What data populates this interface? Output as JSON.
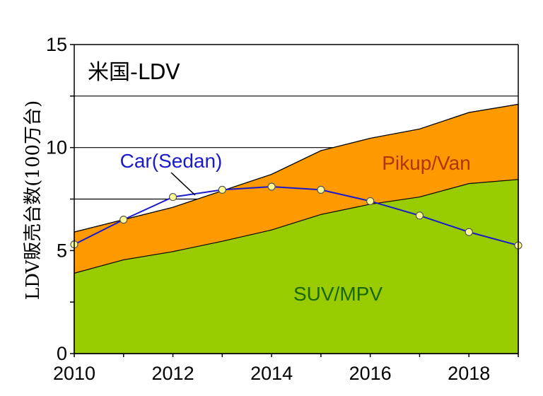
{
  "chart_data": {
    "type": "area",
    "title": "米国-LDV",
    "ylabel": "LDV販売台数(100万台)",
    "xlabel": "",
    "x": [
      2010,
      2011,
      2012,
      2013,
      2014,
      2015,
      2016,
      2017,
      2018,
      2019
    ],
    "xlim": [
      2010,
      2019
    ],
    "ylim": [
      0,
      15
    ],
    "x_ticks": [
      2010,
      2012,
      2014,
      2016,
      2018
    ],
    "y_ticks": [
      0,
      5,
      10,
      15
    ],
    "grid_y": [
      7.5,
      10,
      12.5
    ],
    "stacked": true,
    "series": [
      {
        "name": "SUV/MPV",
        "kind": "stacked-area",
        "color": "#99cc00",
        "values": [
          3.9,
          4.55,
          4.95,
          5.45,
          6.0,
          6.75,
          7.25,
          7.6,
          8.25,
          8.45
        ]
      },
      {
        "name": "Pikup/Van",
        "kind": "stacked-area",
        "color": "#ff9900",
        "cumulative": [
          5.9,
          6.5,
          7.1,
          7.9,
          8.7,
          9.85,
          10.45,
          10.9,
          11.7,
          12.1
        ]
      },
      {
        "name": "Car(Sedan)",
        "kind": "line",
        "color": "#1a1acc",
        "values": [
          5.3,
          6.5,
          7.6,
          7.95,
          8.1,
          7.95,
          7.4,
          6.7,
          5.9,
          5.25
        ]
      }
    ]
  }
}
